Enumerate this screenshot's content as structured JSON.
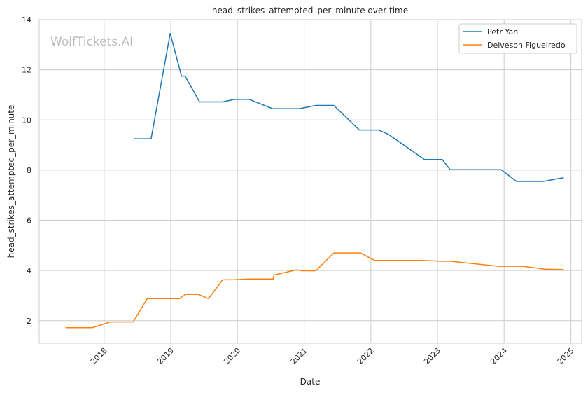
{
  "chart_data": {
    "type": "line",
    "title": "head_strikes_attempted_per_minute over time",
    "xlabel": "Date",
    "ylabel": "head_strikes_attempted_per_minute",
    "watermark": "WolfTickets.AI",
    "x_ticks": [
      "2018",
      "2019",
      "2020",
      "2021",
      "2022",
      "2023",
      "2024",
      "2025"
    ],
    "y_ticks": [
      2,
      4,
      6,
      8,
      10,
      12,
      14
    ],
    "xlim": [
      "2017-01-10",
      "2025-03-01"
    ],
    "ylim": [
      1.1,
      14
    ],
    "grid": true,
    "legend_position": "top-right",
    "series": [
      {
        "name": "Petr Yan",
        "color": "#1f77b4",
        "points": [
          [
            "2018-06-15",
            9.25
          ],
          [
            "2018-09-15",
            9.25
          ],
          [
            "2018-12-29",
            13.45
          ],
          [
            "2019-03-01",
            11.75
          ],
          [
            "2019-03-20",
            11.75
          ],
          [
            "2019-06-08",
            10.72
          ],
          [
            "2019-10-12",
            10.72
          ],
          [
            "2019-12-14",
            10.82
          ],
          [
            "2020-03-07",
            10.82
          ],
          [
            "2020-07-11",
            10.45
          ],
          [
            "2020-12-05",
            10.45
          ],
          [
            "2021-03-06",
            10.58
          ],
          [
            "2021-06-12",
            10.58
          ],
          [
            "2021-10-30",
            9.6
          ],
          [
            "2022-02-12",
            9.6
          ],
          [
            "2022-04-09",
            9.42
          ],
          [
            "2022-10-22",
            8.42
          ],
          [
            "2023-01-28",
            8.42
          ],
          [
            "2023-03-11",
            8.02
          ],
          [
            "2023-12-16",
            8.02
          ],
          [
            "2024-03-09",
            7.55
          ],
          [
            "2024-08-03",
            7.55
          ],
          [
            "2024-11-23",
            7.7
          ]
        ]
      },
      {
        "name": "Deiveson Figueiredo",
        "color": "#ff7f0e",
        "points": [
          [
            "2017-06-03",
            1.72
          ],
          [
            "2017-10-28",
            1.72
          ],
          [
            "2018-02-03",
            1.95
          ],
          [
            "2018-06-09",
            1.95
          ],
          [
            "2018-08-25",
            2.88
          ],
          [
            "2019-02-17",
            2.88
          ],
          [
            "2019-03-23",
            3.05
          ],
          [
            "2019-06-01",
            3.05
          ],
          [
            "2019-07-27",
            2.88
          ],
          [
            "2019-10-12",
            3.63
          ],
          [
            "2019-12-07",
            3.63
          ],
          [
            "2020-02-29",
            3.66
          ],
          [
            "2020-07-15",
            3.66
          ],
          [
            "2020-07-19",
            3.82
          ],
          [
            "2020-11-21",
            4.03
          ],
          [
            "2020-12-19",
            3.99
          ],
          [
            "2021-03-06",
            3.99
          ],
          [
            "2021-06-12",
            4.7
          ],
          [
            "2021-11-06",
            4.7
          ],
          [
            "2022-01-22",
            4.4
          ],
          [
            "2022-10-08",
            4.4
          ],
          [
            "2023-01-21",
            4.37
          ],
          [
            "2023-03-11",
            4.37
          ],
          [
            "2023-12-02",
            4.17
          ],
          [
            "2024-04-13",
            4.17
          ],
          [
            "2024-08-10",
            4.05
          ],
          [
            "2024-11-23",
            4.04
          ]
        ]
      }
    ]
  }
}
